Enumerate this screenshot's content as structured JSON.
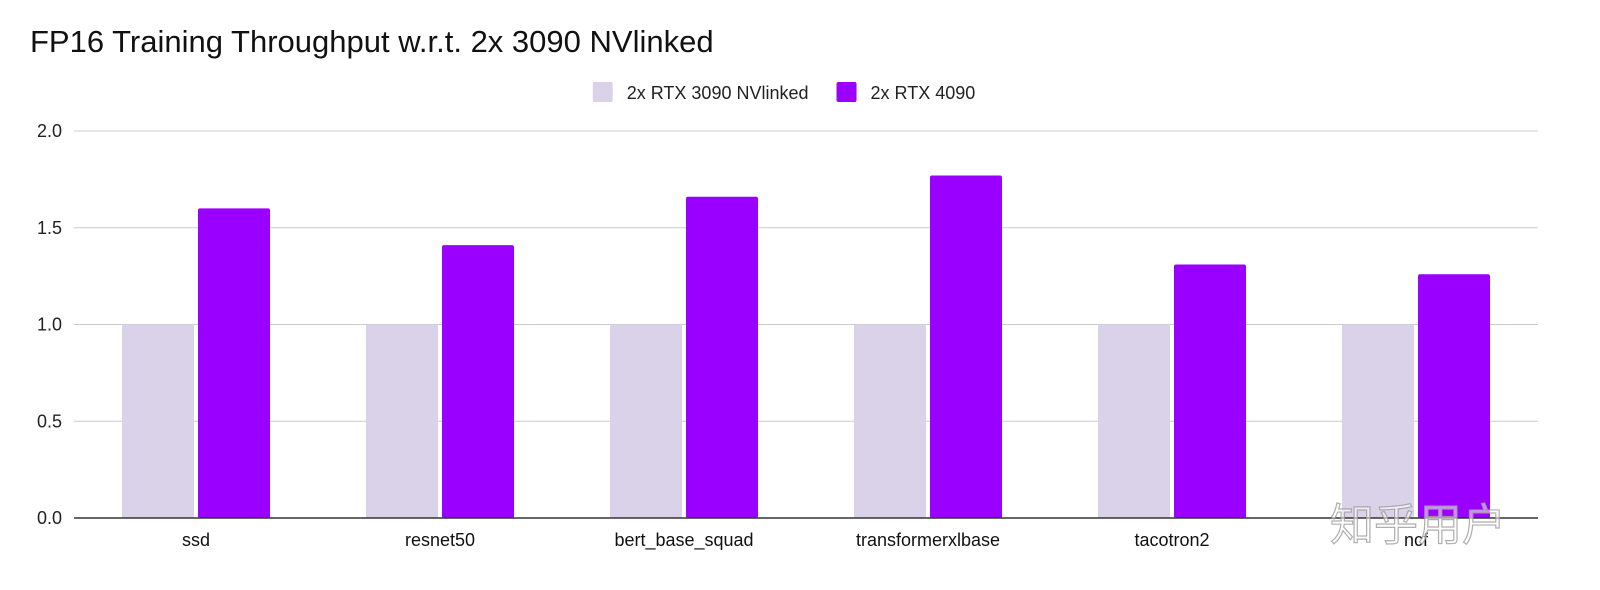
{
  "chart_data": {
    "type": "bar",
    "title": "FP16 Training Throughput w.r.t. 2x 3090 NVlinked",
    "xlabel": "",
    "ylabel": "",
    "categories": [
      "ssd",
      "resnet50",
      "bert_base_squad",
      "transformerxlbase",
      "tacotron2",
      "ncf"
    ],
    "series": [
      {
        "name": "2x RTX 3090 NVlinked",
        "color": "#d9d2e9",
        "values": [
          1.0,
          1.0,
          1.0,
          1.0,
          1.0,
          1.0
        ]
      },
      {
        "name": "2x RTX 4090",
        "color": "#9900ff",
        "values": [
          1.6,
          1.41,
          1.66,
          1.77,
          1.31,
          1.26
        ]
      }
    ],
    "ylim": [
      0,
      2.0
    ],
    "yticks": [
      "0.0",
      "0.5",
      "1.0",
      "1.5",
      "2.0"
    ],
    "grid": true,
    "legend_position": "top-center"
  },
  "watermark": "知乎用户"
}
